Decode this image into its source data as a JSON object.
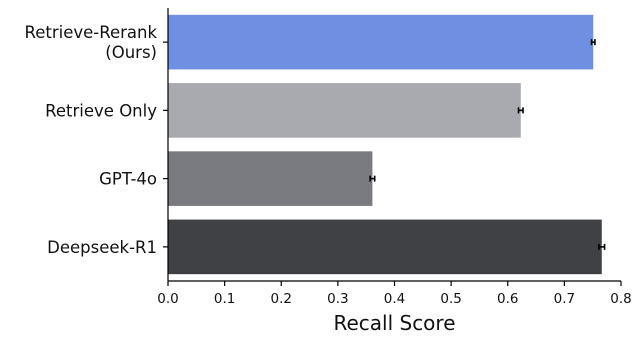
{
  "chart_data": {
    "type": "bar",
    "orientation": "horizontal",
    "title": "",
    "xlabel": "Recall Score",
    "ylabel": "",
    "xlim": [
      0.0,
      0.8
    ],
    "xticks": [
      "0.0",
      "0.1",
      "0.2",
      "0.3",
      "0.4",
      "0.5",
      "0.6",
      "0.7",
      "0.8"
    ],
    "grid": false,
    "categories": [
      {
        "lines": [
          "Retrieve-Rerank",
          "(Ours)"
        ],
        "value": 0.751,
        "error": 0.003,
        "color": "#6F8FE3"
      },
      {
        "lines": [
          "Retrieve Only"
        ],
        "value": 0.623,
        "error": 0.004,
        "color": "#A9AAB0"
      },
      {
        "lines": [
          "GPT-4o"
        ],
        "value": 0.361,
        "error": 0.004,
        "color": "#7A7B80"
      },
      {
        "lines": [
          "Deepseek-R1"
        ],
        "value": 0.766,
        "error": 0.005,
        "color": "#404144"
      }
    ]
  }
}
